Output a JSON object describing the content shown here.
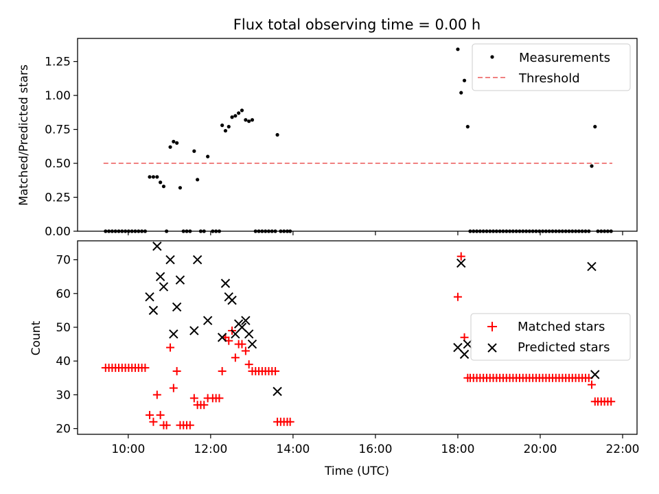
{
  "chart_data": [
    {
      "type": "scatter",
      "title": "Flux total observing time = 0.00 h",
      "ylabel": "Matched/Predicted stars",
      "xlabel": "",
      "x_unit": "hours UTC",
      "xlim": [
        8.77,
        22.35
      ],
      "ylim": [
        0,
        1.42
      ],
      "yticks": [
        0.0,
        0.25,
        0.5,
        0.75,
        1.0,
        1.25
      ],
      "ytick_labels": [
        "0.00",
        "0.25",
        "0.50",
        "0.75",
        "1.00",
        "1.25"
      ],
      "grid": false,
      "legend": {
        "position": "top-right",
        "entries": [
          "Measurements",
          "Threshold"
        ]
      },
      "threshold": {
        "name": "Threshold",
        "y": 0.5,
        "x": [
          9.4,
          21.75
        ],
        "color": "#f08080"
      },
      "series": [
        {
          "name": "Measurements",
          "color": "#000000",
          "marker": "dot",
          "points": [
            [
              9.45,
              0
            ],
            [
              9.53,
              0
            ],
            [
              9.61,
              0
            ],
            [
              9.69,
              0
            ],
            [
              9.77,
              0
            ],
            [
              9.85,
              0
            ],
            [
              9.93,
              0
            ],
            [
              10.01,
              0
            ],
            [
              10.09,
              0
            ],
            [
              10.17,
              0
            ],
            [
              10.25,
              0
            ],
            [
              10.33,
              0
            ],
            [
              10.41,
              0
            ],
            [
              10.52,
              0.4
            ],
            [
              10.61,
              0.4
            ],
            [
              10.7,
              0.4
            ],
            [
              10.78,
              0.36
            ],
            [
              10.86,
              0.33
            ],
            [
              10.93,
              0
            ],
            [
              11.02,
              0.62
            ],
            [
              11.1,
              0.66
            ],
            [
              11.18,
              0.65
            ],
            [
              11.26,
              0.32
            ],
            [
              11.34,
              0
            ],
            [
              11.42,
              0
            ],
            [
              11.5,
              0
            ],
            [
              11.6,
              0.59
            ],
            [
              11.68,
              0.38
            ],
            [
              11.76,
              0
            ],
            [
              11.84,
              0
            ],
            [
              11.93,
              0.55
            ],
            [
              12.05,
              0
            ],
            [
              12.13,
              0
            ],
            [
              12.21,
              0
            ],
            [
              12.28,
              0.78
            ],
            [
              12.36,
              0.74
            ],
            [
              12.44,
              0.77
            ],
            [
              12.52,
              0.84
            ],
            [
              12.6,
              0.85
            ],
            [
              12.68,
              0.87
            ],
            [
              12.76,
              0.89
            ],
            [
              12.85,
              0.82
            ],
            [
              12.93,
              0.81
            ],
            [
              13.01,
              0.82
            ],
            [
              13.09,
              0
            ],
            [
              13.17,
              0
            ],
            [
              13.25,
              0
            ],
            [
              13.33,
              0
            ],
            [
              13.41,
              0
            ],
            [
              13.49,
              0
            ],
            [
              13.57,
              0
            ],
            [
              13.62,
              0.71
            ],
            [
              13.7,
              0
            ],
            [
              13.78,
              0
            ],
            [
              13.86,
              0
            ],
            [
              13.93,
              0
            ],
            [
              18.0,
              1.34
            ],
            [
              18.08,
              1.02
            ],
            [
              18.16,
              1.11
            ],
            [
              18.24,
              0.77
            ],
            [
              18.3,
              0
            ],
            [
              18.38,
              0
            ],
            [
              18.46,
              0
            ],
            [
              18.54,
              0
            ],
            [
              18.62,
              0
            ],
            [
              18.7,
              0
            ],
            [
              18.78,
              0
            ],
            [
              18.86,
              0
            ],
            [
              18.94,
              0
            ],
            [
              19.02,
              0
            ],
            [
              19.1,
              0
            ],
            [
              19.18,
              0
            ],
            [
              19.26,
              0
            ],
            [
              19.34,
              0
            ],
            [
              19.42,
              0
            ],
            [
              19.5,
              0
            ],
            [
              19.58,
              0
            ],
            [
              19.66,
              0
            ],
            [
              19.74,
              0
            ],
            [
              19.82,
              0
            ],
            [
              19.9,
              0
            ],
            [
              19.98,
              0
            ],
            [
              20.06,
              0
            ],
            [
              20.14,
              0
            ],
            [
              20.22,
              0
            ],
            [
              20.3,
              0
            ],
            [
              20.38,
              0
            ],
            [
              20.46,
              0
            ],
            [
              20.54,
              0
            ],
            [
              20.62,
              0
            ],
            [
              20.7,
              0
            ],
            [
              20.78,
              0
            ],
            [
              20.86,
              0
            ],
            [
              20.94,
              0
            ],
            [
              21.02,
              0
            ],
            [
              21.1,
              0
            ],
            [
              21.18,
              0
            ],
            [
              21.25,
              0.48
            ],
            [
              21.33,
              0.77
            ],
            [
              21.4,
              0
            ],
            [
              21.48,
              0
            ],
            [
              21.56,
              0
            ],
            [
              21.64,
              0
            ],
            [
              21.72,
              0
            ]
          ]
        }
      ]
    },
    {
      "type": "scatter",
      "title": "",
      "xlabel": "Time (UTC)",
      "ylabel": "Count",
      "x_unit": "hours UTC",
      "xlim": [
        8.77,
        22.35
      ],
      "ylim": [
        18.3,
        75.6
      ],
      "xticks": [
        10,
        12,
        14,
        16,
        18,
        20,
        22
      ],
      "xtick_labels": [
        "10:00",
        "12:00",
        "14:00",
        "16:00",
        "18:00",
        "20:00",
        "22:00"
      ],
      "yticks": [
        20,
        30,
        40,
        50,
        60,
        70
      ],
      "ytick_labels": [
        "20",
        "30",
        "40",
        "50",
        "60",
        "70"
      ],
      "grid": false,
      "legend": {
        "position": "center-right",
        "entries": [
          "Matched stars",
          "Predicted stars"
        ]
      },
      "series": [
        {
          "name": "Matched stars",
          "color": "#ff0000",
          "marker": "plus",
          "points": [
            [
              9.45,
              38
            ],
            [
              9.53,
              38
            ],
            [
              9.61,
              38
            ],
            [
              9.69,
              38
            ],
            [
              9.77,
              38
            ],
            [
              9.85,
              38
            ],
            [
              9.93,
              38
            ],
            [
              10.01,
              38
            ],
            [
              10.09,
              38
            ],
            [
              10.17,
              38
            ],
            [
              10.25,
              38
            ],
            [
              10.33,
              38
            ],
            [
              10.41,
              38
            ],
            [
              10.52,
              24
            ],
            [
              10.61,
              22
            ],
            [
              10.7,
              30
            ],
            [
              10.78,
              24
            ],
            [
              10.86,
              21
            ],
            [
              10.93,
              21
            ],
            [
              11.02,
              44
            ],
            [
              11.1,
              32
            ],
            [
              11.18,
              37
            ],
            [
              11.26,
              21
            ],
            [
              11.34,
              21
            ],
            [
              11.42,
              21
            ],
            [
              11.5,
              21
            ],
            [
              11.6,
              29
            ],
            [
              11.68,
              27
            ],
            [
              11.76,
              27
            ],
            [
              11.84,
              27
            ],
            [
              11.93,
              29
            ],
            [
              12.05,
              29
            ],
            [
              12.13,
              29
            ],
            [
              12.21,
              29
            ],
            [
              12.28,
              37
            ],
            [
              12.36,
              47
            ],
            [
              12.44,
              46
            ],
            [
              12.52,
              49
            ],
            [
              12.6,
              41
            ],
            [
              12.68,
              45
            ],
            [
              12.76,
              45
            ],
            [
              12.85,
              43
            ],
            [
              12.93,
              39
            ],
            [
              13.01,
              37
            ],
            [
              13.09,
              37
            ],
            [
              13.17,
              37
            ],
            [
              13.25,
              37
            ],
            [
              13.33,
              37
            ],
            [
              13.41,
              37
            ],
            [
              13.49,
              37
            ],
            [
              13.57,
              37
            ],
            [
              13.62,
              22
            ],
            [
              13.7,
              22
            ],
            [
              13.78,
              22
            ],
            [
              13.86,
              22
            ],
            [
              13.93,
              22
            ],
            [
              18.0,
              59
            ],
            [
              18.08,
              71
            ],
            [
              18.16,
              47
            ],
            [
              18.24,
              35
            ],
            [
              18.3,
              35
            ],
            [
              18.38,
              35
            ],
            [
              18.46,
              35
            ],
            [
              18.54,
              35
            ],
            [
              18.62,
              35
            ],
            [
              18.7,
              35
            ],
            [
              18.78,
              35
            ],
            [
              18.86,
              35
            ],
            [
              18.94,
              35
            ],
            [
              19.02,
              35
            ],
            [
              19.1,
              35
            ],
            [
              19.18,
              35
            ],
            [
              19.26,
              35
            ],
            [
              19.34,
              35
            ],
            [
              19.42,
              35
            ],
            [
              19.5,
              35
            ],
            [
              19.58,
              35
            ],
            [
              19.66,
              35
            ],
            [
              19.74,
              35
            ],
            [
              19.82,
              35
            ],
            [
              19.9,
              35
            ],
            [
              19.98,
              35
            ],
            [
              20.06,
              35
            ],
            [
              20.14,
              35
            ],
            [
              20.22,
              35
            ],
            [
              20.3,
              35
            ],
            [
              20.38,
              35
            ],
            [
              20.46,
              35
            ],
            [
              20.54,
              35
            ],
            [
              20.62,
              35
            ],
            [
              20.7,
              35
            ],
            [
              20.78,
              35
            ],
            [
              20.86,
              35
            ],
            [
              20.94,
              35
            ],
            [
              21.02,
              35
            ],
            [
              21.1,
              35
            ],
            [
              21.18,
              35
            ],
            [
              21.25,
              33
            ],
            [
              21.33,
              28
            ],
            [
              21.4,
              28
            ],
            [
              21.48,
              28
            ],
            [
              21.56,
              28
            ],
            [
              21.64,
              28
            ],
            [
              21.72,
              28
            ]
          ]
        },
        {
          "name": "Predicted stars",
          "color": "#000000",
          "marker": "x",
          "points": [
            [
              10.52,
              59
            ],
            [
              10.61,
              55
            ],
            [
              10.7,
              74
            ],
            [
              10.78,
              65
            ],
            [
              10.86,
              62
            ],
            [
              11.02,
              70
            ],
            [
              11.1,
              48
            ],
            [
              11.18,
              56
            ],
            [
              11.26,
              64
            ],
            [
              11.6,
              49
            ],
            [
              11.68,
              70
            ],
            [
              11.93,
              52
            ],
            [
              12.28,
              47
            ],
            [
              12.36,
              63
            ],
            [
              12.44,
              59
            ],
            [
              12.52,
              58
            ],
            [
              12.6,
              48
            ],
            [
              12.68,
              51
            ],
            [
              12.76,
              50
            ],
            [
              12.85,
              52
            ],
            [
              12.93,
              48
            ],
            [
              13.01,
              45
            ],
            [
              13.62,
              31
            ],
            [
              18.0,
              44
            ],
            [
              18.08,
              69
            ],
            [
              18.16,
              42
            ],
            [
              18.24,
              45
            ],
            [
              21.25,
              68
            ],
            [
              21.33,
              36
            ]
          ]
        }
      ]
    }
  ]
}
